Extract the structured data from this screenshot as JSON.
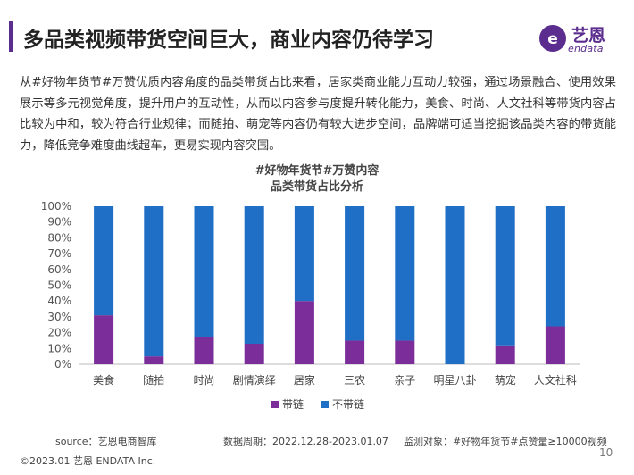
{
  "header": {
    "title": "多品类视频带货空间巨大，商业内容仍待学习",
    "logo_text": "艺恩",
    "logo_sub": "endata"
  },
  "body_text": "从#好物年货节#万赞优质内容角度的品类带货占比来看，居家类商业能力互动力较强，通过场景融合、使用效果展示等多元视觉角度，提升用户的互动性，从而以内容参与度提升转化能力，美食、时尚、人文社科等带货内容占比较为中和，较为符合行业规律；而随拍、萌宠等内容仍有较大进步空间，品牌端可适当挖掘该品类内容的带货能力，降低竞争难度曲线超车，更易实现内容突围。",
  "chart_data": {
    "type": "bar",
    "stacked": true,
    "title_line1": "#好物年货节#万赞内容",
    "title_line2": "品类带货占比分析",
    "categories": [
      "美食",
      "随拍",
      "时尚",
      "剧情演绎",
      "居家",
      "三农",
      "亲子",
      "明星八卦",
      "萌宠",
      "人文社科"
    ],
    "series": [
      {
        "name": "带链",
        "color": "#7b2d99",
        "values": [
          31,
          5,
          17,
          13,
          40,
          15,
          15,
          0,
          12,
          24
        ]
      },
      {
        "name": "不带链",
        "color": "#1f6fc6",
        "values": [
          69,
          95,
          83,
          87,
          60,
          85,
          85,
          100,
          88,
          76
        ]
      }
    ],
    "yticks": [
      "0%",
      "10%",
      "20%",
      "30%",
      "40%",
      "50%",
      "60%",
      "70%",
      "80%",
      "90%",
      "100%"
    ],
    "ylim": [
      0,
      100
    ],
    "grid": false,
    "legend_position": "bottom"
  },
  "footer": {
    "source": "source：艺恩电商智库",
    "period": "数据周期：2022.12.28-2023.01.07",
    "target": "监测对象：#好物年货节#点赞量≥10000视频",
    "copyright": "©2023.01 艺恩 ENDATA Inc.",
    "page": "10"
  }
}
